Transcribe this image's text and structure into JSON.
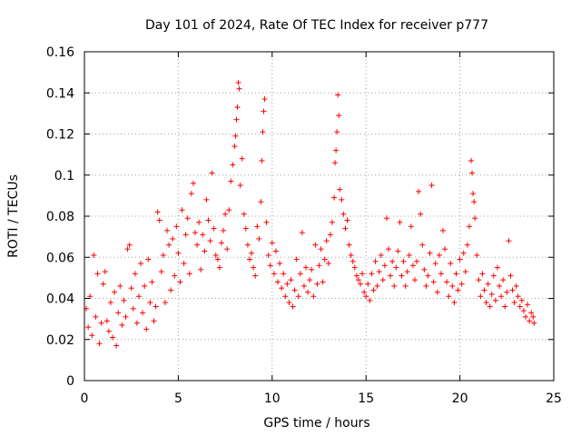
{
  "chart_data": {
    "type": "scatter",
    "title": "Day 101 of 2024, Rate Of TEC Index for receiver p777",
    "xlabel": "GPS time / hours",
    "ylabel": "ROTI / TECUs",
    "xlim": [
      0,
      25
    ],
    "ylim": [
      0,
      0.16
    ],
    "x_ticks": [
      0,
      5,
      10,
      15,
      20,
      25
    ],
    "x_tick_labels": [
      "0",
      "5",
      "10",
      "15",
      "20",
      "25"
    ],
    "y_ticks": [
      0,
      0.02,
      0.04,
      0.06,
      0.08,
      0.1,
      0.12,
      0.14,
      0.16
    ],
    "y_tick_labels": [
      "0",
      "0.02",
      "0.04",
      "0.06",
      "0.08",
      "0.1",
      "0.12",
      "0.14",
      "0.16"
    ],
    "grid": true,
    "marker": "plus",
    "color": "#ff0000",
    "series": [
      {
        "name": "ROTI",
        "points": [
          [
            0.1,
            0.035
          ],
          [
            0.2,
            0.026
          ],
          [
            0.3,
            0.041
          ],
          [
            0.4,
            0.022
          ],
          [
            0.5,
            0.061
          ],
          [
            0.6,
            0.031
          ],
          [
            0.7,
            0.052
          ],
          [
            0.8,
            0.018
          ],
          [
            0.9,
            0.028
          ],
          [
            1.0,
            0.047
          ],
          [
            1.1,
            0.053
          ],
          [
            1.2,
            0.029
          ],
          [
            1.3,
            0.024
          ],
          [
            1.4,
            0.038
          ],
          [
            1.5,
            0.021
          ],
          [
            1.6,
            0.043
          ],
          [
            1.7,
            0.017
          ],
          [
            1.8,
            0.033
          ],
          [
            1.9,
            0.046
          ],
          [
            2.0,
            0.027
          ],
          [
            2.1,
            0.039
          ],
          [
            2.2,
            0.031
          ],
          [
            2.3,
            0.064
          ],
          [
            2.4,
            0.066
          ],
          [
            2.5,
            0.045
          ],
          [
            2.6,
            0.035
          ],
          [
            2.7,
            0.052
          ],
          [
            2.8,
            0.028
          ],
          [
            2.9,
            0.041
          ],
          [
            3.0,
            0.057
          ],
          [
            3.1,
            0.033
          ],
          [
            3.2,
            0.046
          ],
          [
            3.3,
            0.025
          ],
          [
            3.4,
            0.059
          ],
          [
            3.5,
            0.038
          ],
          [
            3.6,
            0.048
          ],
          [
            3.7,
            0.029
          ],
          [
            3.8,
            0.036
          ],
          [
            3.9,
            0.082
          ],
          [
            4.0,
            0.078
          ],
          [
            4.1,
            0.053
          ],
          [
            4.2,
            0.061
          ],
          [
            4.3,
            0.038
          ],
          [
            4.4,
            0.073
          ],
          [
            4.5,
            0.066
          ],
          [
            4.6,
            0.044
          ],
          [
            4.7,
            0.069
          ],
          [
            4.8,
            0.051
          ],
          [
            4.9,
            0.075
          ],
          [
            5.0,
            0.062
          ],
          [
            5.1,
            0.048
          ],
          [
            5.2,
            0.083
          ],
          [
            5.3,
            0.057
          ],
          [
            5.4,
            0.071
          ],
          [
            5.5,
            0.079
          ],
          [
            5.6,
            0.052
          ],
          [
            5.7,
            0.091
          ],
          [
            5.8,
            0.096
          ],
          [
            5.9,
            0.072
          ],
          [
            6.0,
            0.066
          ],
          [
            6.1,
            0.077
          ],
          [
            6.2,
            0.054
          ],
          [
            6.3,
            0.071
          ],
          [
            6.4,
            0.063
          ],
          [
            6.5,
            0.088
          ],
          [
            6.6,
            0.078
          ],
          [
            6.7,
            0.068
          ],
          [
            6.8,
            0.101
          ],
          [
            6.9,
            0.074
          ],
          [
            7.0,
            0.061
          ],
          [
            7.1,
            0.059
          ],
          [
            7.2,
            0.055
          ],
          [
            7.3,
            0.067
          ],
          [
            7.4,
            0.073
          ],
          [
            7.5,
            0.081
          ],
          [
            7.6,
            0.064
          ],
          [
            7.7,
            0.083
          ],
          [
            7.8,
            0.097
          ],
          [
            7.9,
            0.105
          ],
          [
            8.0,
            0.114
          ],
          [
            8.05,
            0.119
          ],
          [
            8.1,
            0.127
          ],
          [
            8.15,
            0.133
          ],
          [
            8.2,
            0.145
          ],
          [
            8.25,
            0.142
          ],
          [
            8.3,
            0.095
          ],
          [
            8.4,
            0.108
          ],
          [
            8.5,
            0.081
          ],
          [
            8.6,
            0.074
          ],
          [
            8.7,
            0.066
          ],
          [
            8.8,
            0.059
          ],
          [
            8.9,
            0.062
          ],
          [
            9.0,
            0.055
          ],
          [
            9.1,
            0.051
          ],
          [
            9.2,
            0.075
          ],
          [
            9.3,
            0.069
          ],
          [
            9.4,
            0.087
          ],
          [
            9.45,
            0.107
          ],
          [
            9.5,
            0.121
          ],
          [
            9.55,
            0.131
          ],
          [
            9.6,
            0.137
          ],
          [
            9.7,
            0.077
          ],
          [
            9.8,
            0.061
          ],
          [
            9.9,
            0.056
          ],
          [
            10.0,
            0.067
          ],
          [
            10.1,
            0.052
          ],
          [
            10.2,
            0.063
          ],
          [
            10.3,
            0.048
          ],
          [
            10.4,
            0.057
          ],
          [
            10.5,
            0.045
          ],
          [
            10.6,
            0.052
          ],
          [
            10.7,
            0.041
          ],
          [
            10.8,
            0.047
          ],
          [
            10.9,
            0.038
          ],
          [
            11.0,
            0.049
          ],
          [
            11.1,
            0.036
          ],
          [
            11.2,
            0.044
          ],
          [
            11.3,
            0.059
          ],
          [
            11.4,
            0.041
          ],
          [
            11.5,
            0.052
          ],
          [
            11.6,
            0.072
          ],
          [
            11.7,
            0.046
          ],
          [
            11.8,
            0.055
          ],
          [
            11.9,
            0.043
          ],
          [
            12.0,
            0.049
          ],
          [
            12.1,
            0.054
          ],
          [
            12.2,
            0.041
          ],
          [
            12.3,
            0.066
          ],
          [
            12.4,
            0.047
          ],
          [
            12.5,
            0.056
          ],
          [
            12.6,
            0.064
          ],
          [
            12.7,
            0.048
          ],
          [
            12.8,
            0.059
          ],
          [
            12.9,
            0.068
          ],
          [
            13.0,
            0.057
          ],
          [
            13.1,
            0.071
          ],
          [
            13.2,
            0.077
          ],
          [
            13.3,
            0.089
          ],
          [
            13.35,
            0.106
          ],
          [
            13.4,
            0.112
          ],
          [
            13.45,
            0.121
          ],
          [
            13.5,
            0.139
          ],
          [
            13.55,
            0.129
          ],
          [
            13.6,
            0.093
          ],
          [
            13.7,
            0.088
          ],
          [
            13.8,
            0.081
          ],
          [
            13.9,
            0.074
          ],
          [
            14.0,
            0.078
          ],
          [
            14.1,
            0.066
          ],
          [
            14.2,
            0.061
          ],
          [
            14.3,
            0.058
          ],
          [
            14.4,
            0.055
          ],
          [
            14.5,
            0.051
          ],
          [
            14.6,
            0.049
          ],
          [
            14.7,
            0.047
          ],
          [
            14.8,
            0.052
          ],
          [
            14.9,
            0.043
          ],
          [
            15.0,
            0.041
          ],
          [
            15.1,
            0.047
          ],
          [
            15.2,
            0.039
          ],
          [
            15.3,
            0.052
          ],
          [
            15.4,
            0.044
          ],
          [
            15.5,
            0.058
          ],
          [
            15.6,
            0.046
          ],
          [
            15.7,
            0.053
          ],
          [
            15.8,
            0.061
          ],
          [
            15.9,
            0.049
          ],
          [
            16.0,
            0.056
          ],
          [
            16.1,
            0.079
          ],
          [
            16.2,
            0.064
          ],
          [
            16.3,
            0.051
          ],
          [
            16.4,
            0.058
          ],
          [
            16.5,
            0.046
          ],
          [
            16.6,
            0.055
          ],
          [
            16.7,
            0.063
          ],
          [
            16.8,
            0.077
          ],
          [
            16.9,
            0.051
          ],
          [
            17.0,
            0.058
          ],
          [
            17.1,
            0.046
          ],
          [
            17.2,
            0.053
          ],
          [
            17.3,
            0.061
          ],
          [
            17.4,
            0.075
          ],
          [
            17.5,
            0.056
          ],
          [
            17.6,
            0.049
          ],
          [
            17.7,
            0.058
          ],
          [
            17.8,
            0.092
          ],
          [
            17.9,
            0.081
          ],
          [
            18.0,
            0.066
          ],
          [
            18.1,
            0.054
          ],
          [
            18.2,
            0.046
          ],
          [
            18.3,
            0.051
          ],
          [
            18.4,
            0.062
          ],
          [
            18.5,
            0.095
          ],
          [
            18.6,
            0.048
          ],
          [
            18.7,
            0.057
          ],
          [
            18.8,
            0.043
          ],
          [
            18.9,
            0.061
          ],
          [
            19.0,
            0.052
          ],
          [
            19.1,
            0.073
          ],
          [
            19.2,
            0.064
          ],
          [
            19.3,
            0.048
          ],
          [
            19.4,
            0.041
          ],
          [
            19.5,
            0.057
          ],
          [
            19.6,
            0.046
          ],
          [
            19.7,
            0.038
          ],
          [
            19.8,
            0.052
          ],
          [
            19.9,
            0.044
          ],
          [
            20.0,
            0.059
          ],
          [
            20.1,
            0.047
          ],
          [
            20.2,
            0.062
          ],
          [
            20.3,
            0.053
          ],
          [
            20.4,
            0.066
          ],
          [
            20.5,
            0.075
          ],
          [
            20.6,
            0.107
          ],
          [
            20.65,
            0.101
          ],
          [
            20.7,
            0.091
          ],
          [
            20.75,
            0.087
          ],
          [
            20.8,
            0.079
          ],
          [
            20.9,
            0.061
          ],
          [
            21.0,
            0.049
          ],
          [
            21.1,
            0.041
          ],
          [
            21.2,
            0.052
          ],
          [
            21.3,
            0.044
          ],
          [
            21.4,
            0.038
          ],
          [
            21.5,
            0.047
          ],
          [
            21.6,
            0.036
          ],
          [
            21.7,
            0.042
          ],
          [
            21.8,
            0.051
          ],
          [
            21.9,
            0.039
          ],
          [
            22.0,
            0.055
          ],
          [
            22.1,
            0.046
          ],
          [
            22.2,
            0.041
          ],
          [
            22.3,
            0.049
          ],
          [
            22.4,
            0.036
          ],
          [
            22.5,
            0.043
          ],
          [
            22.6,
            0.068
          ],
          [
            22.7,
            0.051
          ],
          [
            22.8,
            0.044
          ],
          [
            22.9,
            0.038
          ],
          [
            23.0,
            0.046
          ],
          [
            23.1,
            0.041
          ],
          [
            23.2,
            0.036
          ],
          [
            23.3,
            0.039
          ],
          [
            23.4,
            0.034
          ],
          [
            23.5,
            0.031
          ],
          [
            23.6,
            0.037
          ],
          [
            23.7,
            0.029
          ],
          [
            23.8,
            0.033
          ],
          [
            23.9,
            0.031
          ],
          [
            23.95,
            0.028
          ]
        ]
      }
    ]
  }
}
